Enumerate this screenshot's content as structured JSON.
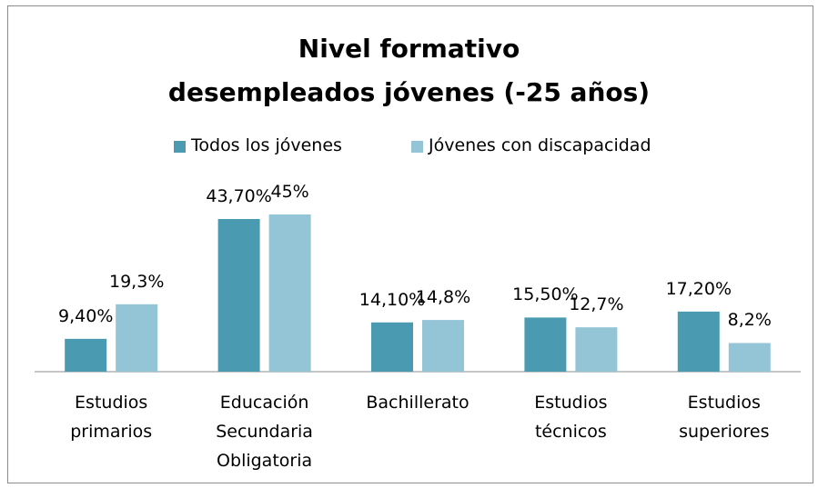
{
  "chart_data": {
    "type": "bar",
    "title": "Nivel formativo\ndesempleados jóvenes (-25 años)",
    "categories": [
      "Estudios\nprimarios",
      "Educación\nSecundaria\nObligatoria",
      "Bachillerato",
      "Estudios\ntécnicos",
      "Estudios\nsuperiores"
    ],
    "series": [
      {
        "name": "Todos los jóvenes",
        "color": "#4a9bb1",
        "values": [
          9.4,
          43.7,
          14.1,
          15.5,
          17.2
        ],
        "value_labels": [
          "9,40%",
          "43,70%",
          "14,10%",
          "15,50%",
          "17,20%"
        ]
      },
      {
        "name": "Jóvenes con discapacidad",
        "color": "#93c5d7",
        "values": [
          19.3,
          45,
          14.8,
          12.7,
          8.2
        ],
        "value_labels": [
          "19,3%",
          "45%",
          "14,8%",
          "12,7%",
          "8,2%"
        ]
      }
    ],
    "legend": "top"
  }
}
